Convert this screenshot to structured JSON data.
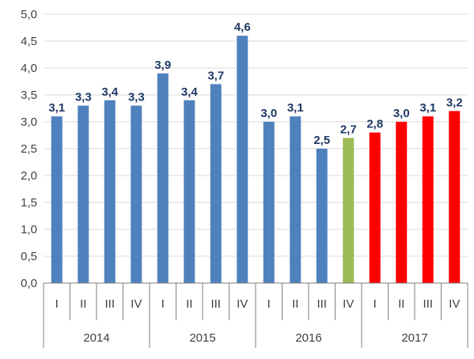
{
  "chart_data": {
    "type": "bar",
    "title": "",
    "xlabel": "",
    "ylabel": "",
    "ylim": [
      0,
      5
    ],
    "yticks": [
      "0,0",
      "0,5",
      "1,0",
      "1,5",
      "2,0",
      "2,5",
      "3,0",
      "3,5",
      "4,0",
      "4,5",
      "5,0"
    ],
    "grid": true,
    "legend": "none",
    "groups": [
      {
        "year": "2014",
        "quarters": [
          "I",
          "II",
          "III",
          "IV"
        ]
      },
      {
        "year": "2015",
        "quarters": [
          "I",
          "II",
          "III",
          "IV"
        ]
      },
      {
        "year": "2016",
        "quarters": [
          "I",
          "II",
          "III",
          "IV"
        ]
      },
      {
        "year": "2017",
        "quarters": [
          "I",
          "II",
          "III",
          "IV"
        ]
      }
    ],
    "values": [
      3.1,
      3.3,
      3.4,
      3.3,
      3.9,
      3.4,
      3.7,
      4.6,
      3.0,
      3.1,
      2.5,
      2.7,
      2.8,
      3.0,
      3.1,
      3.2
    ],
    "labels": [
      "3,1",
      "3,3",
      "3,4",
      "3,3",
      "3,9",
      "3,4",
      "3,7",
      "4,6",
      "3,0",
      "3,1",
      "2,5",
      "2,7",
      "2,8",
      "3,0",
      "3,1",
      "3,2"
    ],
    "colors": [
      "#4f81bd",
      "#4f81bd",
      "#4f81bd",
      "#4f81bd",
      "#4f81bd",
      "#4f81bd",
      "#4f81bd",
      "#4f81bd",
      "#4f81bd",
      "#4f81bd",
      "#4f81bd",
      "#9bbb59",
      "#ff0000",
      "#ff0000",
      "#ff0000",
      "#ff0000"
    ],
    "label_color": "#1f3864"
  }
}
